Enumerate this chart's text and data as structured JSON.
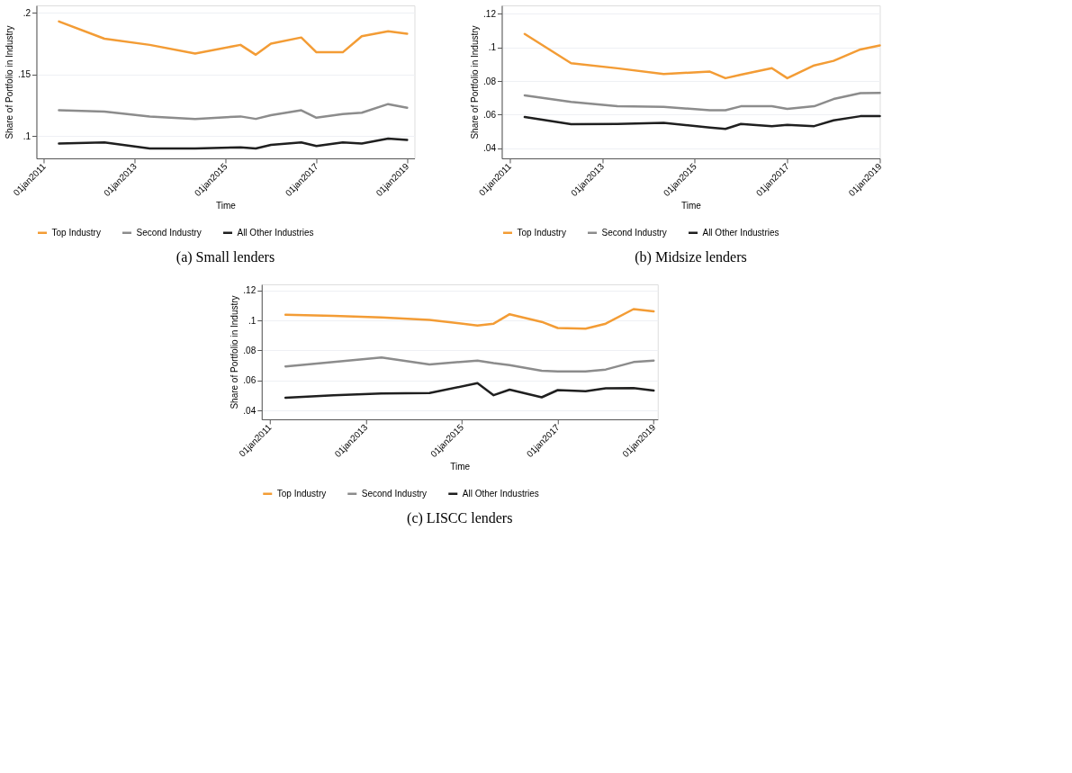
{
  "chart_data": [
    {
      "type": "line",
      "title": "(a) Small lenders",
      "xlabel": "Time",
      "ylabel": "Share of Portfolio in Industry",
      "x": [
        "2011-05",
        "2012-05",
        "2013-05",
        "2014-05",
        "2015-05",
        "2015-09",
        "2016-01",
        "2016-09",
        "2017-01",
        "2017-08",
        "2018-01",
        "2018-08",
        "2019-01"
      ],
      "series": [
        {
          "name": "Top Industry",
          "color": "#f39c35",
          "values": [
            0.193,
            0.179,
            0.174,
            0.167,
            0.174,
            0.166,
            0.175,
            0.18,
            0.168,
            0.168,
            0.181,
            0.185,
            0.183
          ]
        },
        {
          "name": "Second Industry",
          "color": "#8c8c8c",
          "values": [
            0.121,
            0.12,
            0.116,
            0.114,
            0.116,
            0.114,
            0.117,
            0.121,
            0.115,
            0.118,
            0.119,
            0.126,
            0.123
          ]
        },
        {
          "name": "All Other Industries",
          "color": "#1f1f1f",
          "values": [
            0.094,
            0.095,
            0.09,
            0.09,
            0.091,
            0.09,
            0.093,
            0.095,
            0.092,
            0.095,
            0.094,
            0.098,
            0.097
          ]
        }
      ],
      "xlim": [
        "2010-11",
        "2019-03"
      ],
      "xticks": [
        {
          "value": "2011-01-01",
          "label": "01jan2011"
        },
        {
          "value": "2013-01-01",
          "label": "01jan2013"
        },
        {
          "value": "2015-01-01",
          "label": "01jan2015"
        },
        {
          "value": "2017-01-01",
          "label": "01jan2017"
        },
        {
          "value": "2019-01-01",
          "label": "01jan2019"
        }
      ],
      "ylim": [
        0.082,
        0.206
      ],
      "yticks": [
        {
          "value": 0.1,
          "label": ".1"
        },
        {
          "value": 0.15,
          "label": ".15"
        },
        {
          "value": 0.2,
          "label": ".2"
        }
      ],
      "grid": "y",
      "legend": "bottom"
    },
    {
      "type": "line",
      "title": "(b) Midsize lenders",
      "xlabel": "Time",
      "ylabel": "Share of Portfolio in Industry",
      "x": [
        "2011-05",
        "2012-05",
        "2013-05",
        "2014-05",
        "2015-05",
        "2015-09",
        "2016-01",
        "2016-09",
        "2017-01",
        "2017-08",
        "2018-01",
        "2018-08",
        "2019-01"
      ],
      "series": [
        {
          "name": "Top Industry",
          "color": "#f39c35",
          "values": [
            0.108,
            0.0906,
            0.0876,
            0.0842,
            0.0856,
            0.0817,
            0.0838,
            0.0877,
            0.0817,
            0.0893,
            0.092,
            0.0988,
            0.1012
          ]
        },
        {
          "name": "Second Industry",
          "color": "#8c8c8c",
          "values": [
            0.0715,
            0.0676,
            0.065,
            0.0647,
            0.0626,
            0.0626,
            0.065,
            0.065,
            0.0634,
            0.065,
            0.0693,
            0.0728,
            0.073
          ]
        },
        {
          "name": "All Other Industries",
          "color": "#1f1f1f",
          "values": [
            0.0586,
            0.0544,
            0.0545,
            0.0552,
            0.0523,
            0.0515,
            0.0545,
            0.0532,
            0.054,
            0.0532,
            0.0566,
            0.0591,
            0.0591
          ]
        }
      ],
      "xlim": [
        "2010-11",
        "2019-01"
      ],
      "xticks": [
        {
          "value": "2011-01-01",
          "label": "01jan2011"
        },
        {
          "value": "2013-01-01",
          "label": "01jan2013"
        },
        {
          "value": "2015-01-01",
          "label": "01jan2015"
        },
        {
          "value": "2017-01-01",
          "label": "01jan2017"
        },
        {
          "value": "2019-01-01",
          "label": "01jan2019"
        }
      ],
      "ylim": [
        0.034,
        0.125
      ],
      "yticks": [
        {
          "value": 0.04,
          "label": ".04"
        },
        {
          "value": 0.06,
          "label": ".06"
        },
        {
          "value": 0.08,
          "label": ".08"
        },
        {
          "value": 0.1,
          "label": ".1"
        },
        {
          "value": 0.12,
          "label": ".12"
        }
      ],
      "grid": "y",
      "legend": "bottom"
    },
    {
      "type": "line",
      "title": "(c) LISCC lenders",
      "xlabel": "Time",
      "ylabel": "Share of Portfolio in Industry",
      "x": [
        "2011-05",
        "2012-05",
        "2013-05",
        "2014-05",
        "2015-05",
        "2015-09",
        "2016-01",
        "2016-09",
        "2017-01",
        "2017-08",
        "2018-01",
        "2018-08",
        "2019-01"
      ],
      "series": [
        {
          "name": "Top Industry",
          "color": "#f39c35",
          "values": [
            0.1037,
            0.103,
            0.102,
            0.1003,
            0.0966,
            0.0978,
            0.1041,
            0.099,
            0.0949,
            0.0944,
            0.0978,
            0.1075,
            0.106
          ]
        },
        {
          "name": "Second Industry",
          "color": "#8c8c8c",
          "values": [
            0.0693,
            0.0722,
            0.0752,
            0.0706,
            0.0732,
            0.0715,
            0.0701,
            0.0664,
            0.066,
            0.0659,
            0.0672,
            0.0722,
            0.0732
          ]
        },
        {
          "name": "All Other Industries",
          "color": "#1f1f1f",
          "values": [
            0.0484,
            0.0501,
            0.0513,
            0.0515,
            0.0581,
            0.0501,
            0.0538,
            0.0487,
            0.0535,
            0.0527,
            0.0547,
            0.0549,
            0.0532
          ]
        }
      ],
      "xlim": [
        "2010-11",
        "2019-02"
      ],
      "xticks": [
        {
          "value": "2011-01-01",
          "label": "01jan2011"
        },
        {
          "value": "2013-01-01",
          "label": "01jan2013"
        },
        {
          "value": "2015-01-01",
          "label": "01jan2015"
        },
        {
          "value": "2017-01-01",
          "label": "01jan2017"
        },
        {
          "value": "2019-01-01",
          "label": "01jan2019"
        }
      ],
      "ylim": [
        0.034,
        0.124
      ],
      "yticks": [
        {
          "value": 0.04,
          "label": ".04"
        },
        {
          "value": 0.06,
          "label": ".06"
        },
        {
          "value": 0.08,
          "label": ".08"
        },
        {
          "value": 0.1,
          "label": ".1"
        },
        {
          "value": 0.12,
          "label": ".12"
        }
      ],
      "grid": "y",
      "legend": "bottom"
    }
  ]
}
